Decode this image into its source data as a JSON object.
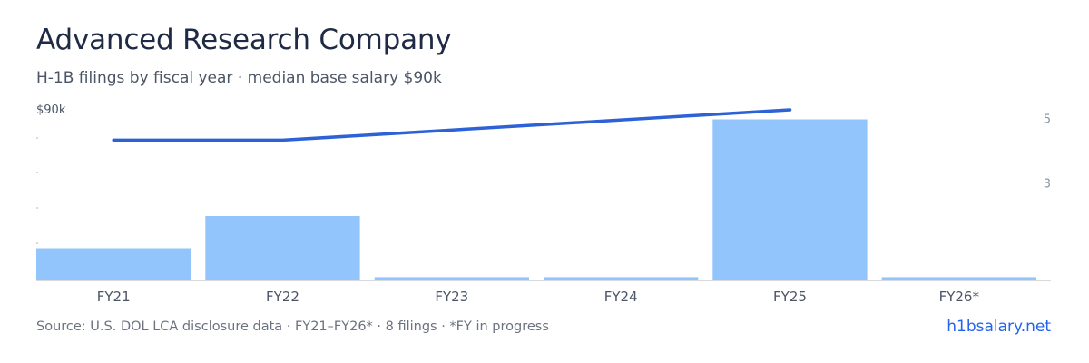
{
  "title": "Advanced Research Company",
  "subtitle": "H-1B filings by fiscal year · median base salary $90k",
  "source": "Source: U.S. DOL LCA disclosure data · FY21–FY26* · 8 filings · *FY in progress",
  "site": "h1bsalary.net",
  "colors": {
    "bar": "#93c5fd",
    "line": "#2d62d6",
    "axis": "#d6d9de",
    "tick_text": "#8a93a3",
    "category_text": "#4b5566"
  },
  "chart_data": {
    "type": "bar",
    "categories": [
      "FY21",
      "FY22",
      "FY23",
      "FY24",
      "FY25",
      "FY26*"
    ],
    "series": [
      {
        "type": "bar",
        "axis": "right",
        "values": [
          1,
          2,
          0.1,
          0.1,
          5,
          0.1
        ]
      },
      {
        "type": "line",
        "axis": "left",
        "values": [
          74000,
          74000,
          null,
          null,
          90000,
          null
        ]
      }
    ],
    "left_axis": {
      "label_top": "$90k",
      "range": [
        0,
        90000
      ]
    },
    "right_axis": {
      "ticks": [
        "5",
        "3"
      ],
      "range": [
        0,
        6
      ]
    },
    "legend": "none",
    "grid": false
  }
}
